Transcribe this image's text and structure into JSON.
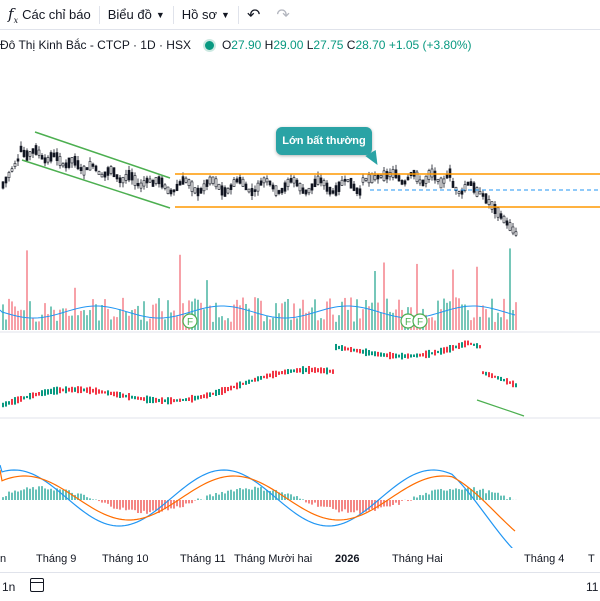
{
  "toolbar": {
    "indicators_label": "Các chỉ báo",
    "chart_type_label": "Biểu đồ",
    "profile_label": "Hồ sơ"
  },
  "legend": {
    "symbol": "Đô Thị Kinh Bắc - CTCP · 1D · HSX",
    "open_label": "O",
    "open": "27.90",
    "high_label": "H",
    "high": "29.00",
    "low_label": "L",
    "low": "27.75",
    "close_label": "C",
    "close": "28.70",
    "change": "+1.05 (+3.80%)"
  },
  "callout": {
    "text": "Lớn bất thường"
  },
  "event_markers": [
    "F",
    "F",
    "F"
  ],
  "xaxis": {
    "labels": [
      "n",
      "Tháng 9",
      "Tháng 10",
      "Tháng 11",
      "Tháng Mười hai",
      "2026",
      "Tháng Hai",
      "Tháng 4",
      "T"
    ]
  },
  "bottom": {
    "range_left": "1n",
    "range_right": "11"
  },
  "colors": {
    "up": "#089981",
    "down": "#f23645",
    "channel": "#4caf50",
    "range_lines": "#ff9800",
    "callout": "#2aa3a5",
    "ma": "#2196f3",
    "macd_signal": "#ff6d00"
  }
}
